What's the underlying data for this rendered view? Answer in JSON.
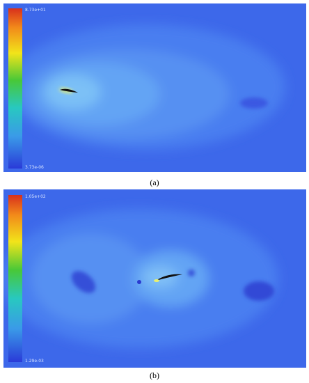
{
  "panels": [
    {
      "caption": "(a)",
      "colorbar": {
        "max_label": "8.73e+01",
        "min_label": "3.73e-06"
      }
    },
    {
      "caption": "(b)",
      "colorbar": {
        "max_label": "1.05e+02",
        "min_label": "1.29e-03"
      }
    }
  ]
}
